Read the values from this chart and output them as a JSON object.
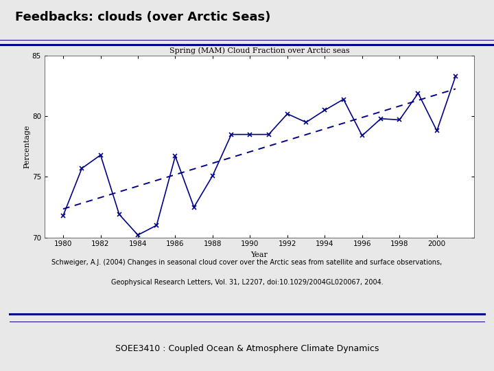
{
  "title": "Feedbacks: clouds (over Arctic Seas)",
  "chart_title": "Spring (MAM) Cloud Fraction over Arctic seas",
  "xlabel": "Year",
  "ylabel": "Percentage",
  "years": [
    1980,
    1981,
    1982,
    1983,
    1984,
    1985,
    1986,
    1987,
    1988,
    1989,
    1990,
    1991,
    1992,
    1993,
    1994,
    1995,
    1996,
    1997,
    1998,
    1999,
    2000,
    2001
  ],
  "values": [
    71.8,
    75.7,
    76.8,
    71.9,
    70.2,
    71.0,
    76.7,
    72.5,
    75.1,
    78.5,
    78.5,
    78.5,
    80.2,
    79.5,
    80.5,
    81.4,
    78.4,
    79.8,
    79.7,
    81.9,
    78.8,
    83.3
  ],
  "ylim": [
    70,
    85
  ],
  "xlim": [
    1979,
    2002
  ],
  "yticks": [
    70,
    75,
    80,
    85
  ],
  "xticks": [
    1980,
    1982,
    1984,
    1986,
    1988,
    1990,
    1992,
    1994,
    1996,
    1998,
    2000
  ],
  "line_color": "#00008B",
  "trend_color": "#00008B",
  "slide_bg": "#e8e8e8",
  "caption_line1": "Schweiger, A.J. (2004) Changes in seasonal cloud cover over the Arctic seas from satellite and surface observations,",
  "caption_line2": "Geophysical Research Letters, Vol. 31, L2207, doi:10.1029/2004GL020067, 2004.",
  "footer": "SOEE3410 : Coupled Ocean & Atmosphere Climate Dynamics"
}
